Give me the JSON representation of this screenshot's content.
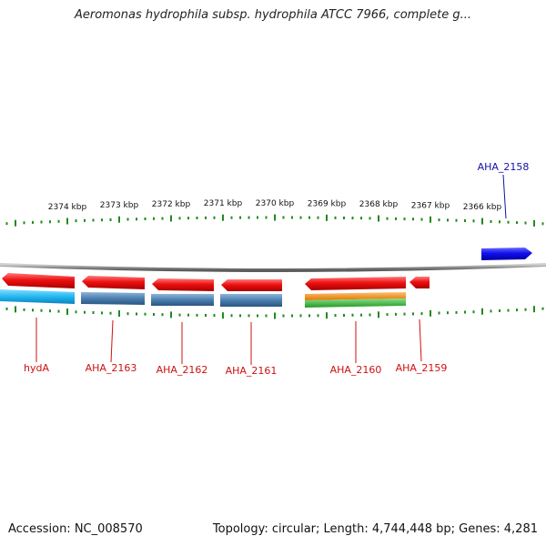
{
  "title": "Aeromonas hydrophila subsp. hydrophila ATCC 7966, complete g...",
  "footer": {
    "accession": "Accession: NC_008570",
    "summary": "Topology: circular; Length: 4,744,448 bp; Genes: 4,281"
  },
  "colors": {
    "backbone": "#8a8a8a",
    "ticks": "#1f8a1f",
    "gene_reverse": "#ee1111",
    "gene_forward": "#1010ee",
    "cds_light_blue": "#22b8f0",
    "cds_steel_blue": "#4a7fb0",
    "feature_orange": "#f08a10",
    "feature_green": "#3cb83c",
    "label_red": "#cc1111",
    "label_blue": "#1111aa"
  },
  "chart_data": {
    "type": "genome_map",
    "tick_labels": [
      "2374 kbp",
      "2373 kbp",
      "2372 kbp",
      "2371 kbp",
      "2370 kbp",
      "2369 kbp",
      "2368 kbp",
      "2367 kbp",
      "2366 kbp"
    ],
    "genes": [
      {
        "name": "hydA",
        "strand": "reverse"
      },
      {
        "name": "AHA_2163",
        "strand": "reverse"
      },
      {
        "name": "AHA_2162",
        "strand": "reverse"
      },
      {
        "name": "AHA_2161",
        "strand": "reverse"
      },
      {
        "name": "AHA_2160",
        "strand": "reverse"
      },
      {
        "name": "AHA_2159",
        "strand": "reverse"
      },
      {
        "name": "AHA_2158",
        "strand": "forward"
      }
    ]
  }
}
